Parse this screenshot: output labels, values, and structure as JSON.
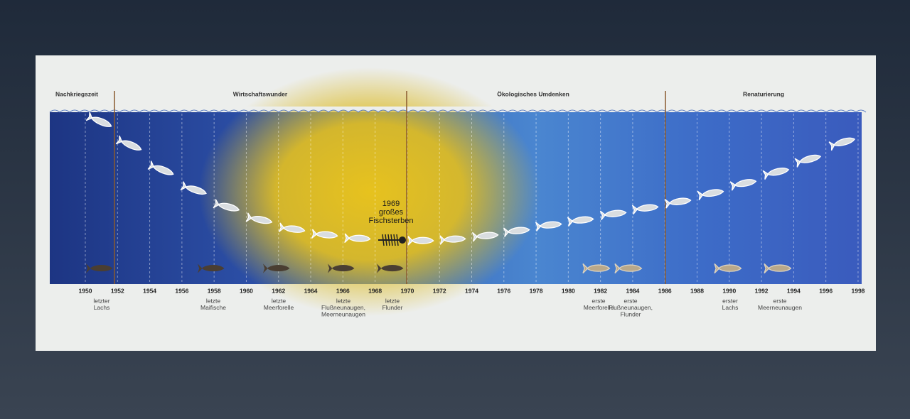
{
  "eras": [
    "Nachkriegszeit",
    "Wirtschaftswunder",
    "Ökologisches Umdenken",
    "Renaturierung"
  ],
  "years": [
    1950,
    1952,
    1954,
    1956,
    1958,
    1960,
    1962,
    1964,
    1966,
    1968,
    1970,
    1972,
    1974,
    1976,
    1978,
    1980,
    1982,
    1984,
    1986,
    1988,
    1990,
    1992,
    1994,
    1996,
    1998
  ],
  "annotation": [
    "1969",
    "großes",
    "Fischsterben"
  ],
  "events": [
    [
      "letzter",
      "Lachs"
    ],
    [
      "letzte",
      "Maifische"
    ],
    [
      "letzte",
      "Meerforelle"
    ],
    [
      "letzte",
      "Flußneunaugen,",
      "Meerneunaugen"
    ],
    [
      "letzte",
      "Flunder"
    ],
    [
      "erste",
      "Meerforelle"
    ],
    [
      "erste",
      "Flußneunaugen,",
      "Flunder"
    ],
    [
      "erster",
      "Lachs"
    ],
    [
      "erste",
      "Meerneunaugen"
    ]
  ]
}
